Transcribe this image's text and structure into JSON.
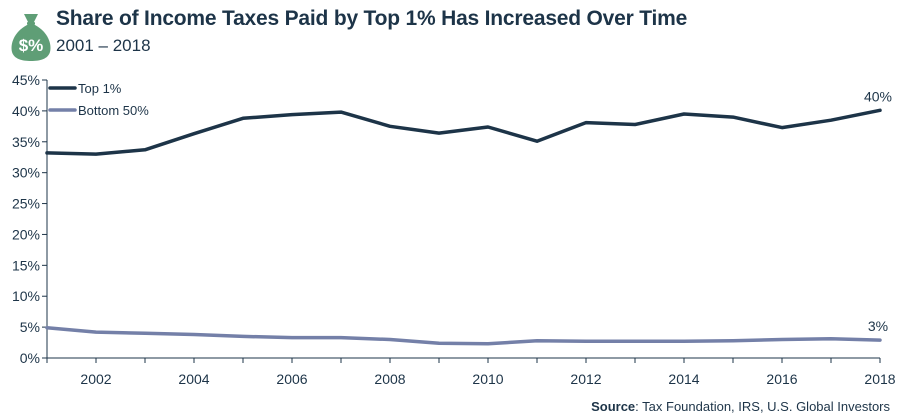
{
  "header": {
    "title": "Share of Income Taxes Paid by Top 1% Has Increased Over Time",
    "subtitle": "2001 – 2018"
  },
  "logo": {
    "icon": "money-bag-percent-icon",
    "color": "#5f9e76"
  },
  "source": {
    "label": "Source",
    "text": ": Tax Foundation, IRS, U.S. Global Investors"
  },
  "chart_data": {
    "type": "line",
    "x": [
      2001,
      2002,
      2003,
      2004,
      2005,
      2006,
      2007,
      2008,
      2009,
      2010,
      2011,
      2012,
      2013,
      2014,
      2015,
      2016,
      2017,
      2018
    ],
    "xticks": [
      2002,
      2004,
      2006,
      2008,
      2010,
      2012,
      2014,
      2016,
      2018
    ],
    "xlim": [
      2001,
      2018
    ],
    "ylim": [
      0,
      45
    ],
    "yticks": [
      0,
      5,
      10,
      15,
      20,
      25,
      30,
      35,
      40,
      45
    ],
    "ytick_suffix": "%",
    "legend_position": "top-left",
    "grid": false,
    "series": [
      {
        "name": "Top 1%",
        "color": "#1d3448",
        "values": [
          33.2,
          33.0,
          33.7,
          36.3,
          38.8,
          39.4,
          39.8,
          37.5,
          36.4,
          37.4,
          35.1,
          38.1,
          37.8,
          39.5,
          39.0,
          37.3,
          38.5,
          40.1
        ],
        "end_label": "40%"
      },
      {
        "name": "Bottom 50%",
        "color": "#7480a8",
        "values": [
          4.9,
          4.2,
          4.0,
          3.8,
          3.5,
          3.3,
          3.3,
          3.0,
          2.4,
          2.3,
          2.8,
          2.7,
          2.7,
          2.7,
          2.8,
          3.0,
          3.1,
          2.9
        ],
        "end_label": "3%"
      }
    ]
  }
}
